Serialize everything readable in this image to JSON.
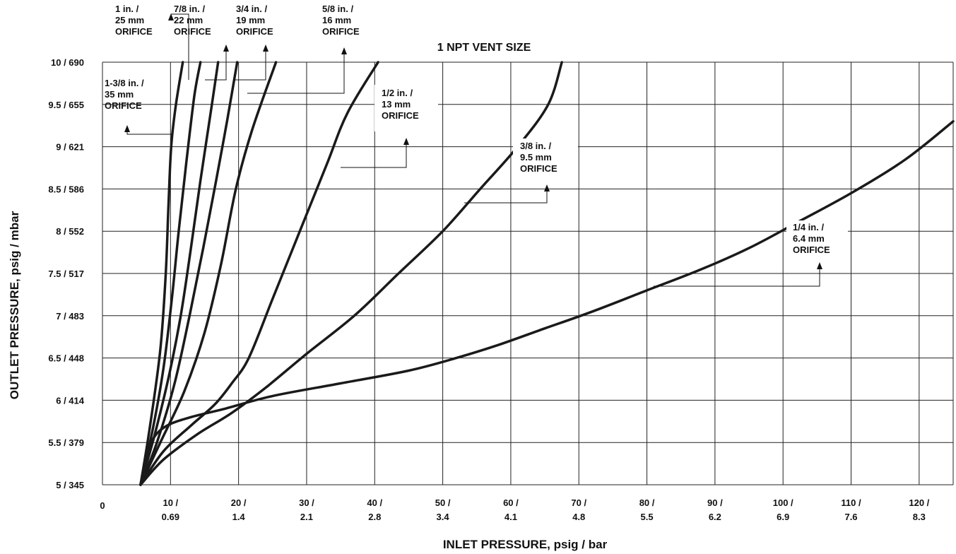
{
  "chart_data": {
    "type": "line",
    "title": "1 NPT VENT SIZE",
    "xlabel": "INLET PRESSURE, psig / bar",
    "ylabel": "OUTLET PRESSURE, psig / mbar",
    "xlim": [
      0,
      125
    ],
    "ylim": [
      5,
      10
    ],
    "grid": true,
    "x_ticks": [
      {
        "value": 0,
        "line1": "0",
        "line2": ""
      },
      {
        "value": 10,
        "line1": "10 /",
        "line2": "0.69"
      },
      {
        "value": 20,
        "line1": "20 /",
        "line2": "1.4"
      },
      {
        "value": 30,
        "line1": "30 /",
        "line2": "2.1"
      },
      {
        "value": 40,
        "line1": "40 /",
        "line2": "2.8"
      },
      {
        "value": 50,
        "line1": "50 /",
        "line2": "3.4"
      },
      {
        "value": 60,
        "line1": "60 /",
        "line2": "4.1"
      },
      {
        "value": 70,
        "line1": "70 /",
        "line2": "4.8"
      },
      {
        "value": 80,
        "line1": "80 /",
        "line2": "5.5"
      },
      {
        "value": 90,
        "line1": "90 /",
        "line2": "6.2"
      },
      {
        "value": 100,
        "line1": "100 /",
        "line2": "6.9"
      },
      {
        "value": 110,
        "line1": "110 /",
        "line2": "7.6"
      },
      {
        "value": 120,
        "line1": "120 /",
        "line2": "8.3"
      }
    ],
    "y_ticks": [
      {
        "value": 5,
        "label": "5 / 345"
      },
      {
        "value": 5.5,
        "label": "5.5 / 379"
      },
      {
        "value": 6,
        "label": "6 / 414"
      },
      {
        "value": 6.5,
        "label": "6.5 / 448"
      },
      {
        "value": 7,
        "label": "7 / 483"
      },
      {
        "value": 7.5,
        "label": "7.5 / 517"
      },
      {
        "value": 8,
        "label": "8 / 552"
      },
      {
        "value": 8.5,
        "label": "8.5 / 586"
      },
      {
        "value": 9,
        "label": "9 / 621"
      },
      {
        "value": 9.5,
        "label": "9.5 / 655"
      },
      {
        "value": 10,
        "label": "10 / 690"
      }
    ],
    "series": [
      {
        "name": "1-3/8 in. / 35 mm ORIFICE",
        "points": [
          [
            5.6,
            5
          ],
          [
            7,
            5.7
          ],
          [
            8.5,
            6.6
          ],
          [
            9.3,
            7.5
          ],
          [
            9.7,
            8.3
          ],
          [
            10.1,
            9
          ],
          [
            10.8,
            9.5
          ],
          [
            11.8,
            10
          ]
        ]
      },
      {
        "name": "1 in. / 25 mm ORIFICE",
        "points": [
          [
            5.6,
            5
          ],
          [
            7.5,
            5.7
          ],
          [
            9,
            6.4
          ],
          [
            10.2,
            7.2
          ],
          [
            11.2,
            8
          ],
          [
            12.3,
            8.8
          ],
          [
            13.5,
            9.6
          ],
          [
            14.4,
            10
          ]
        ]
      },
      {
        "name": "7/8 in. / 22 mm ORIFICE",
        "points": [
          [
            5.6,
            5
          ],
          [
            7.7,
            5.6
          ],
          [
            9.8,
            6.3
          ],
          [
            11.5,
            7
          ],
          [
            13,
            7.8
          ],
          [
            14.4,
            8.6
          ],
          [
            15.9,
            9.4
          ],
          [
            17,
            10
          ]
        ]
      },
      {
        "name": "3/4 in. / 19 mm ORIFICE",
        "points": [
          [
            5.6,
            5
          ],
          [
            8,
            5.5
          ],
          [
            10.6,
            6.2
          ],
          [
            12.8,
            7
          ],
          [
            14.8,
            7.8
          ],
          [
            16.7,
            8.6
          ],
          [
            18.3,
            9.3
          ],
          [
            19.8,
            10
          ]
        ]
      },
      {
        "name": "5/8 in. / 16 mm ORIFICE",
        "points": [
          [
            5.6,
            5
          ],
          [
            8.5,
            5.5
          ],
          [
            12,
            6.1
          ],
          [
            15,
            6.8
          ],
          [
            17.4,
            7.6
          ],
          [
            19.6,
            8.5
          ],
          [
            22,
            9.2
          ],
          [
            25.5,
            10
          ]
        ]
      },
      {
        "name": "1/2 in. / 13 mm ORIFICE",
        "points": [
          [
            5.6,
            5
          ],
          [
            9,
            5.4
          ],
          [
            13,
            5.7
          ],
          [
            16.5,
            5.95
          ],
          [
            19,
            6.2
          ],
          [
            21.5,
            6.5
          ],
          [
            25,
            7.2
          ],
          [
            29,
            8
          ],
          [
            33,
            8.8
          ],
          [
            36,
            9.4
          ],
          [
            40.5,
            10
          ]
        ]
      },
      {
        "name": "3/8 in. / 9.5 mm ORIFICE",
        "points": [
          [
            5.6,
            5
          ],
          [
            9,
            5.3
          ],
          [
            14,
            5.6
          ],
          [
            19,
            5.85
          ],
          [
            24,
            6.15
          ],
          [
            30,
            6.55
          ],
          [
            37,
            7
          ],
          [
            43.5,
            7.5
          ],
          [
            50,
            8
          ],
          [
            55.5,
            8.5
          ],
          [
            61,
            9
          ],
          [
            65.5,
            9.5
          ],
          [
            67.5,
            10
          ]
        ]
      },
      {
        "name": "1/4 in. / 6.4 mm ORIFICE",
        "points": [
          [
            5.6,
            5
          ],
          [
            6.5,
            5.3
          ],
          [
            7.5,
            5.55
          ],
          [
            9.5,
            5.7
          ],
          [
            13,
            5.8
          ],
          [
            18,
            5.9
          ],
          [
            25,
            6.05
          ],
          [
            35,
            6.2
          ],
          [
            45,
            6.35
          ],
          [
            52,
            6.5
          ],
          [
            58,
            6.65
          ],
          [
            65,
            6.85
          ],
          [
            72,
            7.05
          ],
          [
            80,
            7.3
          ],
          [
            88,
            7.55
          ],
          [
            95,
            7.8
          ],
          [
            102,
            8.1
          ],
          [
            110,
            8.45
          ],
          [
            118,
            8.85
          ],
          [
            125,
            9.3
          ]
        ]
      }
    ]
  },
  "labels": [
    {
      "key": "o_1375",
      "lines": [
        "1-3/8 in. /",
        "35 mm",
        "ORIFICE"
      ]
    },
    {
      "key": "o_1",
      "lines": [
        "1 in. /",
        "25 mm",
        "ORIFICE"
      ]
    },
    {
      "key": "o_78",
      "lines": [
        "7/8 in. /",
        "22 mm",
        "ORIFICE"
      ]
    },
    {
      "key": "o_34",
      "lines": [
        "3/4 in. /",
        "19 mm",
        "ORIFICE"
      ]
    },
    {
      "key": "o_58",
      "lines": [
        "5/8 in. /",
        "16 mm",
        "ORIFICE"
      ]
    },
    {
      "key": "o_12",
      "lines": [
        "1/2 in. /",
        "13 mm",
        "ORIFICE"
      ]
    },
    {
      "key": "o_38",
      "lines": [
        "3/8 in. /",
        "9.5 mm",
        "ORIFICE"
      ]
    },
    {
      "key": "o_14",
      "lines": [
        "1/4 in. /",
        "6.4 mm",
        "ORIFICE"
      ]
    }
  ]
}
